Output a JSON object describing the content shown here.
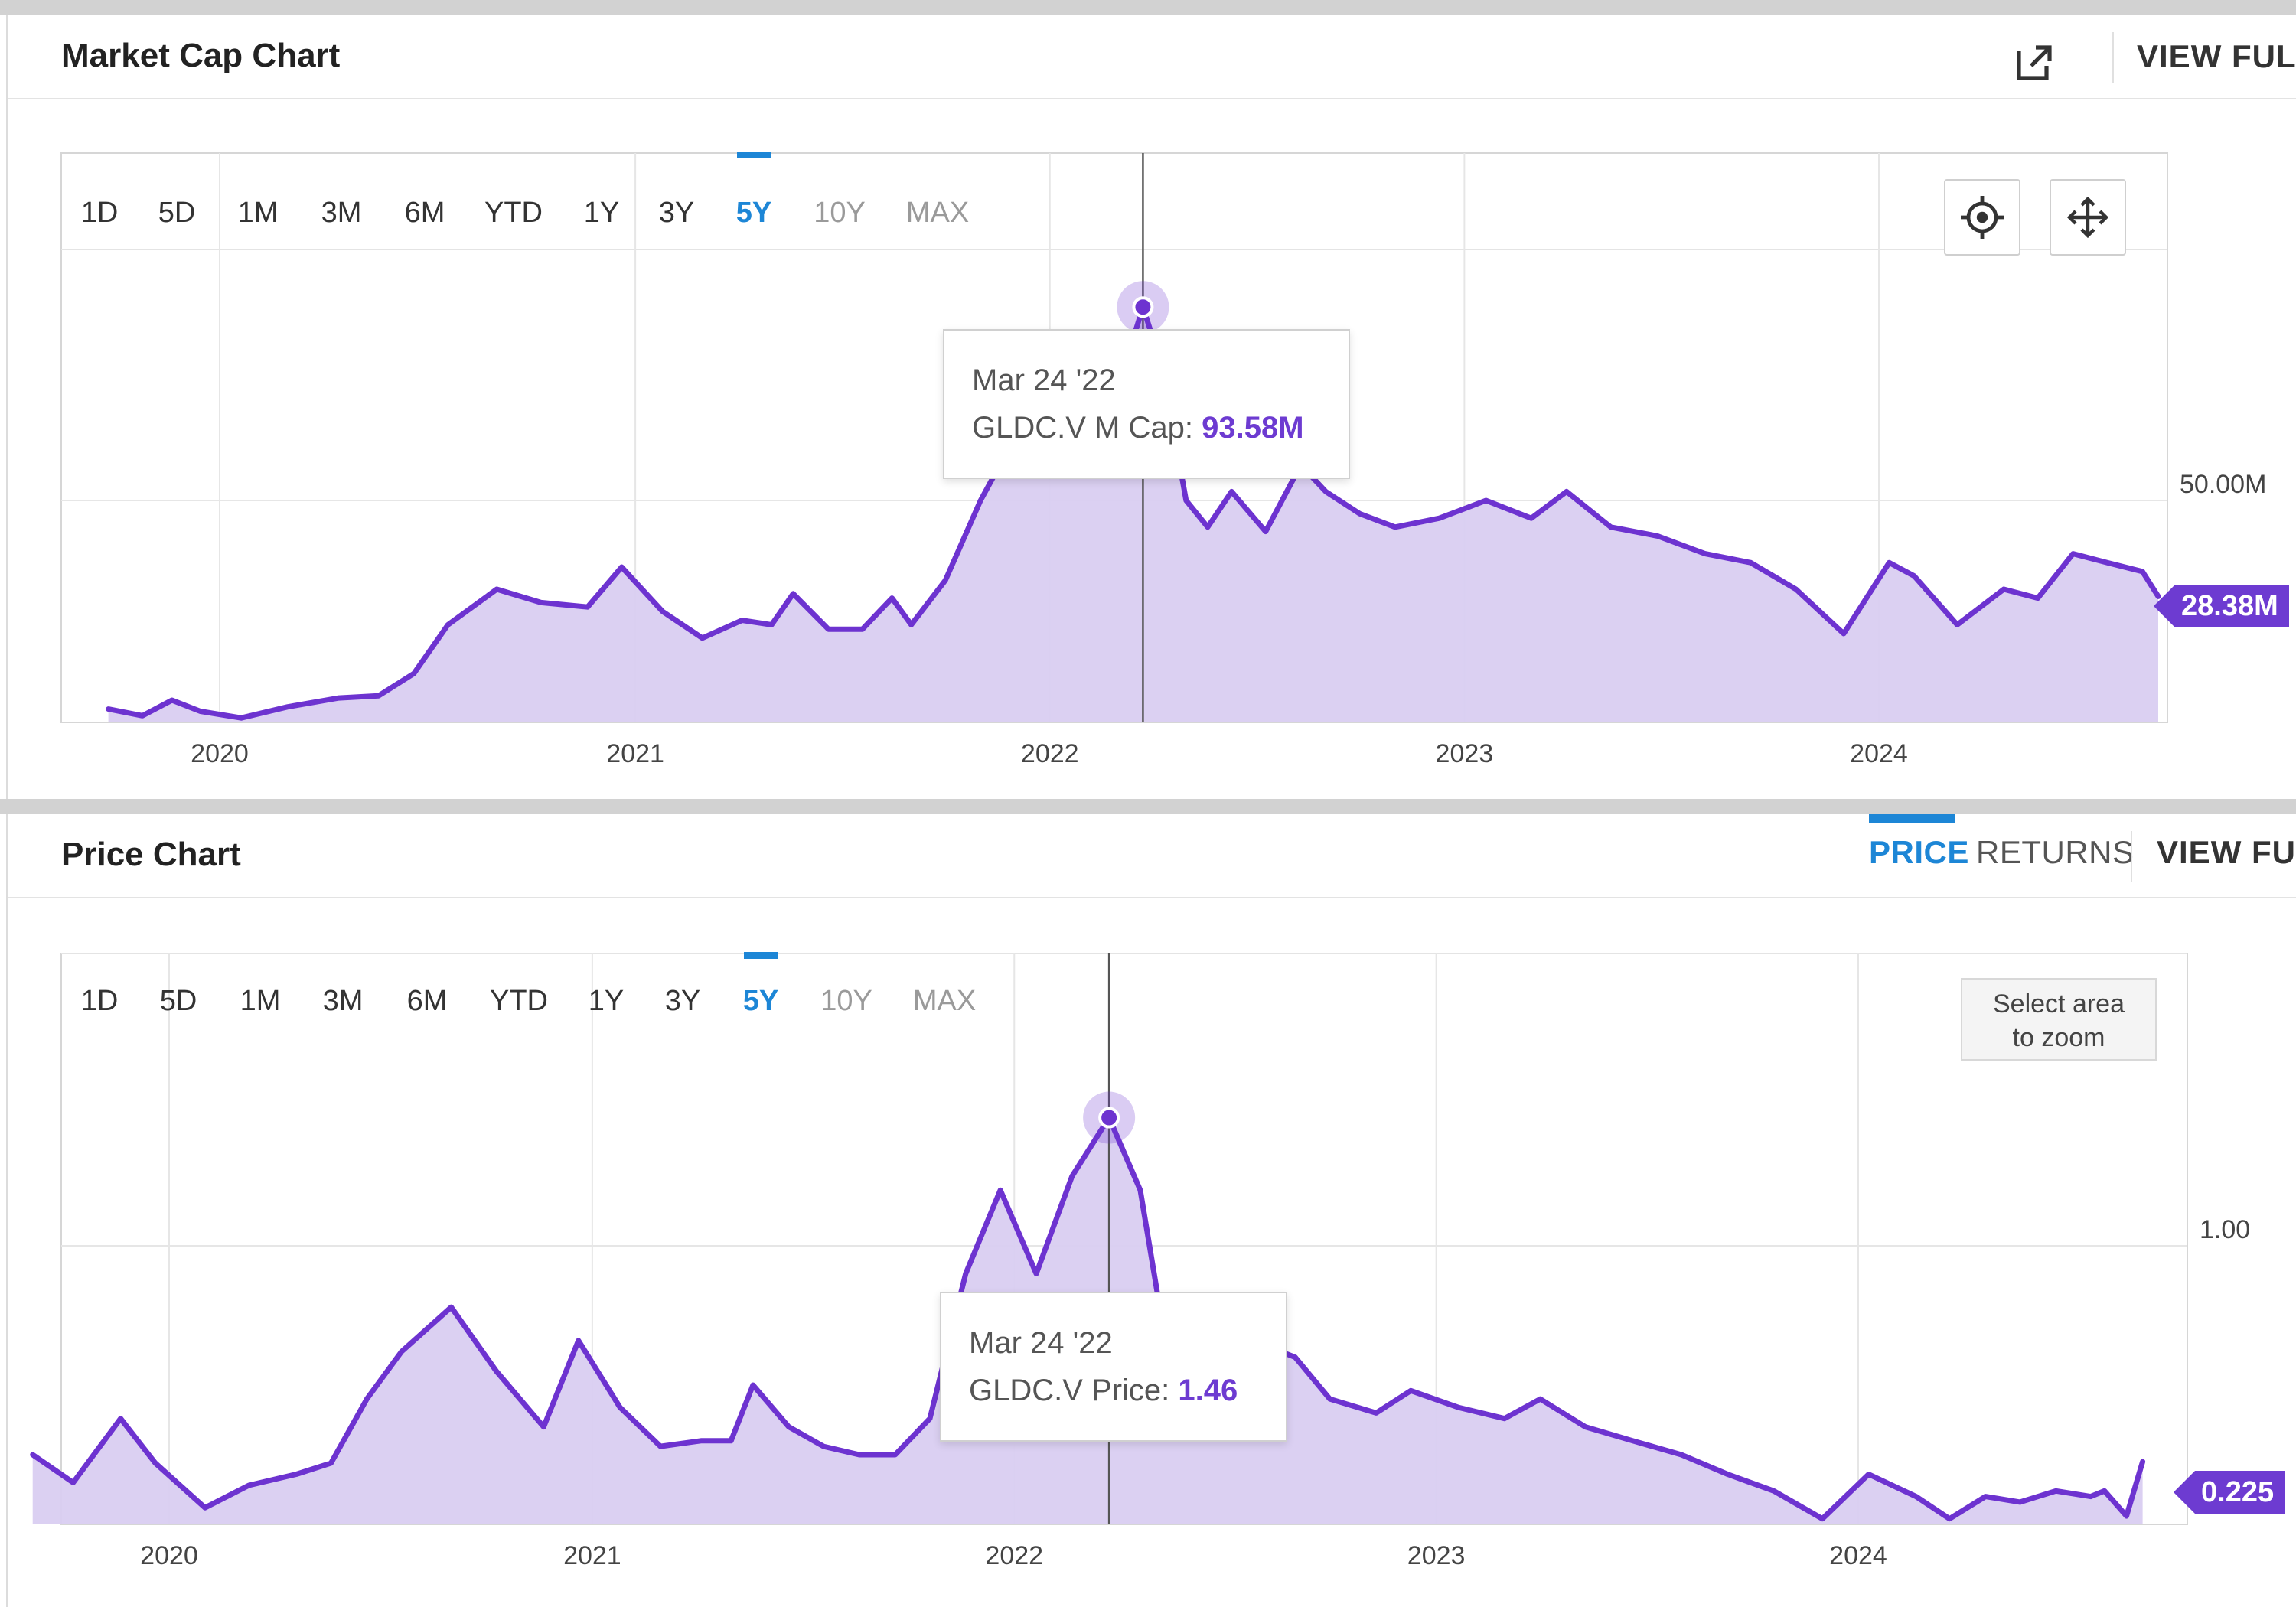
{
  "market_cap_panel": {
    "title": "Market Cap Chart",
    "view_full_label": "VIEW FULL",
    "export_icon": "external-link-icon",
    "range_buttons": [
      "1D",
      "5D",
      "1M",
      "3M",
      "6M",
      "YTD",
      "1Y",
      "3Y",
      "5Y",
      "10Y",
      "MAX"
    ],
    "active_range": "5Y",
    "disabled_ranges": [
      "10Y",
      "MAX"
    ],
    "tools": [
      {
        "name": "crosshair",
        "icon": "crosshair-icon"
      },
      {
        "name": "pan",
        "icon": "move-arrows-icon"
      }
    ],
    "tooltip": {
      "date": "Mar 24 '22",
      "label": "GLDC.V M Cap:",
      "value": "93.58M"
    },
    "last_value_label": "28.38M"
  },
  "price_panel": {
    "title": "Price Chart",
    "tabs": [
      "PRICE",
      "RETURNS"
    ],
    "active_tab": "PRICE",
    "view_full_label": "VIEW FUL",
    "range_buttons": [
      "1D",
      "5D",
      "1M",
      "3M",
      "6M",
      "YTD",
      "1Y",
      "3Y",
      "5Y",
      "10Y",
      "MAX"
    ],
    "active_range": "5Y",
    "disabled_ranges": [
      "10Y",
      "MAX"
    ],
    "zoom_hint_line1": "Select area",
    "zoom_hint_line2": "to zoom",
    "tooltip": {
      "date": "Mar 24 '22",
      "label": "GLDC.V Price:",
      "value": "1.46"
    },
    "last_value_label": "0.225"
  },
  "colors": {
    "line": "#6d33d0",
    "fill": "#d9cdf1",
    "accent": "#1d86d6",
    "badge": "#6d3bd1"
  },
  "chart_data": [
    {
      "type": "area",
      "title": "Market Cap Chart",
      "series": [
        {
          "name": "GLDC.V M Cap",
          "points": [
            [
              "2019-09-25",
              3.0
            ],
            [
              "2019-10-25",
              1.5
            ],
            [
              "2019-11-20",
              5.0
            ],
            [
              "2019-12-15",
              2.5
            ],
            [
              "2020-01-20",
              1.0
            ],
            [
              "2020-03-01",
              3.5
            ],
            [
              "2020-04-15",
              5.5
            ],
            [
              "2020-05-20",
              6.0
            ],
            [
              "2020-06-20",
              11.0
            ],
            [
              "2020-07-20",
              22.0
            ],
            [
              "2020-09-01",
              30.0
            ],
            [
              "2020-10-10",
              27.0
            ],
            [
              "2020-11-20",
              26.0
            ],
            [
              "2020-12-20",
              35.0
            ],
            [
              "2021-01-25",
              25.0
            ],
            [
              "2021-03-01",
              19.0
            ],
            [
              "2021-04-05",
              23.0
            ],
            [
              "2021-05-01",
              22.0
            ],
            [
              "2021-05-20",
              29.0
            ],
            [
              "2021-06-20",
              21.0
            ],
            [
              "2021-07-20",
              21.0
            ],
            [
              "2021-08-15",
              28.0
            ],
            [
              "2021-09-01",
              22.0
            ],
            [
              "2021-10-01",
              32.0
            ],
            [
              "2021-11-01",
              50.0
            ],
            [
              "2021-12-05",
              66.0
            ],
            [
              "2022-01-10",
              60.0
            ],
            [
              "2022-02-10",
              74.0
            ],
            [
              "2022-03-10",
              82.0
            ],
            [
              "2022-03-24",
              93.58
            ],
            [
              "2022-04-10",
              80.0
            ],
            [
              "2022-05-01",
              50.0
            ],
            [
              "2022-05-20",
              44.0
            ],
            [
              "2022-06-10",
              52.0
            ],
            [
              "2022-07-10",
              43.0
            ],
            [
              "2022-08-10",
              58.0
            ],
            [
              "2022-09-01",
              52.0
            ],
            [
              "2022-10-01",
              47.0
            ],
            [
              "2022-11-01",
              44.0
            ],
            [
              "2022-12-10",
              46.0
            ],
            [
              "2023-01-20",
              50.0
            ],
            [
              "2023-03-01",
              46.0
            ],
            [
              "2023-04-01",
              52.0
            ],
            [
              "2023-05-10",
              44.0
            ],
            [
              "2023-06-20",
              42.0
            ],
            [
              "2023-08-01",
              38.0
            ],
            [
              "2023-09-10",
              36.0
            ],
            [
              "2023-10-20",
              30.0
            ],
            [
              "2023-12-01",
              20.0
            ],
            [
              "2024-01-10",
              36.0
            ],
            [
              "2024-02-01",
              33.0
            ],
            [
              "2024-03-10",
              22.0
            ],
            [
              "2024-04-20",
              30.0
            ],
            [
              "2024-05-20",
              28.0
            ],
            [
              "2024-06-20",
              38.0
            ],
            [
              "2024-07-20",
              36.0
            ],
            [
              "2024-08-20",
              34.0
            ],
            [
              "2024-09-03",
              28.38
            ]
          ]
        }
      ],
      "x_ticks": [
        "2020",
        "2021",
        "2022",
        "2023",
        "2024"
      ],
      "y_ticks": [
        "50.00M"
      ],
      "crosshair_date": "2022-03-24",
      "grid": true
    },
    {
      "type": "area",
      "title": "Price Chart",
      "series": [
        {
          "name": "GLDC.V Price",
          "points": [
            [
              "2019-09-05",
              0.25
            ],
            [
              "2019-10-10",
              0.15
            ],
            [
              "2019-11-20",
              0.38
            ],
            [
              "2019-12-20",
              0.22
            ],
            [
              "2020-02-01",
              0.06
            ],
            [
              "2020-03-10",
              0.14
            ],
            [
              "2020-04-20",
              0.18
            ],
            [
              "2020-05-20",
              0.22
            ],
            [
              "2020-06-20",
              0.45
            ],
            [
              "2020-07-20",
              0.62
            ],
            [
              "2020-09-01",
              0.78
            ],
            [
              "2020-10-10",
              0.55
            ],
            [
              "2020-11-20",
              0.35
            ],
            [
              "2020-12-20",
              0.66
            ],
            [
              "2021-01-25",
              0.42
            ],
            [
              "2021-03-01",
              0.28
            ],
            [
              "2021-04-05",
              0.3
            ],
            [
              "2021-05-01",
              0.3
            ],
            [
              "2021-05-20",
              0.5
            ],
            [
              "2021-06-20",
              0.35
            ],
            [
              "2021-07-20",
              0.28
            ],
            [
              "2021-08-20",
              0.25
            ],
            [
              "2021-09-20",
              0.25
            ],
            [
              "2021-10-20",
              0.38
            ],
            [
              "2021-11-20",
              0.9
            ],
            [
              "2021-12-20",
              1.2
            ],
            [
              "2022-01-20",
              0.9
            ],
            [
              "2022-02-20",
              1.25
            ],
            [
              "2022-03-24",
              1.46
            ],
            [
              "2022-04-20",
              1.2
            ],
            [
              "2022-05-10",
              0.7
            ],
            [
              "2022-06-01",
              0.6
            ],
            [
              "2022-07-01",
              0.55
            ],
            [
              "2022-08-01",
              0.65
            ],
            [
              "2022-09-01",
              0.6
            ],
            [
              "2022-10-01",
              0.45
            ],
            [
              "2022-11-10",
              0.4
            ],
            [
              "2022-12-10",
              0.48
            ],
            [
              "2023-01-20",
              0.42
            ],
            [
              "2023-03-01",
              0.38
            ],
            [
              "2023-04-01",
              0.45
            ],
            [
              "2023-05-10",
              0.35
            ],
            [
              "2023-06-20",
              0.3
            ],
            [
              "2023-08-01",
              0.25
            ],
            [
              "2023-09-10",
              0.18
            ],
            [
              "2023-10-20",
              0.12
            ],
            [
              "2023-12-01",
              0.02
            ],
            [
              "2024-01-10",
              0.18
            ],
            [
              "2024-02-20",
              0.1
            ],
            [
              "2024-03-20",
              0.02
            ],
            [
              "2024-04-20",
              0.1
            ],
            [
              "2024-05-20",
              0.08
            ],
            [
              "2024-06-20",
              0.12
            ],
            [
              "2024-07-20",
              0.1
            ],
            [
              "2024-08-01",
              0.12
            ],
            [
              "2024-08-20",
              0.03
            ],
            [
              "2024-09-03",
              0.225
            ]
          ]
        }
      ],
      "x_ticks": [
        "2020",
        "2021",
        "2022",
        "2023",
        "2024"
      ],
      "y_ticks": [
        "1.00"
      ],
      "crosshair_date": "2022-03-24",
      "grid": true
    }
  ]
}
